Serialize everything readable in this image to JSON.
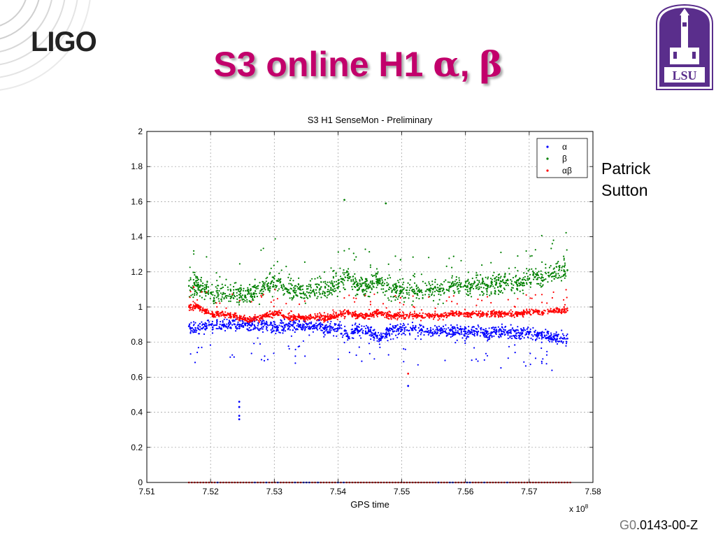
{
  "slide": {
    "logo_text": "LIGO",
    "title_main": "S3 online H1 ",
    "alpha": "α",
    "comma": ", ",
    "beta": "β",
    "author_first": "Patrick",
    "author_last": "Sutton",
    "doc_id_hidden": "G0",
    "doc_id": ".0143-00-Z",
    "title_color": "#c2006b",
    "lsu_logo_text": "LSU",
    "lsu_color": "#5a2e8c"
  },
  "chart_data": {
    "type": "scatter",
    "title": "S3 H1 SenseMon - Preliminary",
    "xlabel": "GPS time",
    "ylabel": "",
    "x_multiplier": "x 10",
    "x_multiplier_exp": "8",
    "xlim": [
      7.51,
      7.58
    ],
    "ylim": [
      0,
      2
    ],
    "xticks": [
      "7.51",
      "7.52",
      "7.53",
      "7.54",
      "7.55",
      "7.56",
      "7.57",
      "7.58"
    ],
    "yticks": [
      "0",
      "0.2",
      "0.4",
      "0.6",
      "0.8",
      "1",
      "1.2",
      "1.4",
      "1.6",
      "1.8",
      "2"
    ],
    "grid": true,
    "legend_position": "top-right",
    "series": [
      {
        "name": "α",
        "color": "#0000ff",
        "x": [
          7.5166,
          7.518,
          7.52,
          7.522,
          7.5245,
          7.526,
          7.528,
          7.5305,
          7.532,
          7.534,
          7.536,
          7.538,
          7.54,
          7.5415,
          7.543,
          7.545,
          7.5465,
          7.548,
          7.55,
          7.552,
          7.554,
          7.556,
          7.558,
          7.56,
          7.562,
          7.564,
          7.566,
          7.568,
          7.57,
          7.572,
          7.574,
          7.576
        ],
        "y": [
          0.89,
          0.88,
          0.9,
          0.9,
          0.9,
          0.9,
          0.9,
          0.88,
          0.9,
          0.89,
          0.89,
          0.88,
          0.88,
          0.84,
          0.87,
          0.86,
          0.82,
          0.87,
          0.87,
          0.88,
          0.86,
          0.87,
          0.86,
          0.86,
          0.86,
          0.85,
          0.86,
          0.85,
          0.85,
          0.84,
          0.82,
          0.82
        ]
      },
      {
        "name": "β",
        "color": "#008000",
        "x": [
          7.5166,
          7.518,
          7.52,
          7.522,
          7.5245,
          7.526,
          7.528,
          7.5305,
          7.532,
          7.534,
          7.536,
          7.538,
          7.54,
          7.5415,
          7.543,
          7.545,
          7.5465,
          7.548,
          7.55,
          7.552,
          7.554,
          7.556,
          7.558,
          7.56,
          7.562,
          7.564,
          7.566,
          7.568,
          7.57,
          7.572,
          7.574,
          7.576
        ],
        "y": [
          1.12,
          1.12,
          1.08,
          1.08,
          1.07,
          1.08,
          1.1,
          1.15,
          1.1,
          1.1,
          1.09,
          1.11,
          1.13,
          1.18,
          1.12,
          1.12,
          1.16,
          1.1,
          1.09,
          1.09,
          1.1,
          1.1,
          1.12,
          1.12,
          1.13,
          1.12,
          1.14,
          1.14,
          1.16,
          1.17,
          1.2,
          1.21
        ]
      },
      {
        "name": "αβ",
        "color": "#ff0000",
        "x": [
          7.5166,
          7.518,
          7.52,
          7.522,
          7.5245,
          7.526,
          7.528,
          7.5305,
          7.532,
          7.534,
          7.536,
          7.538,
          7.54,
          7.5415,
          7.543,
          7.545,
          7.5465,
          7.548,
          7.55,
          7.552,
          7.554,
          7.556,
          7.558,
          7.56,
          7.562,
          7.564,
          7.566,
          7.568,
          7.57,
          7.572,
          7.574,
          7.576
        ],
        "y": [
          1.0,
          1.0,
          0.96,
          0.96,
          0.94,
          0.93,
          0.94,
          0.97,
          0.94,
          0.94,
          0.94,
          0.94,
          0.95,
          0.97,
          0.95,
          0.95,
          0.97,
          0.95,
          0.95,
          0.95,
          0.95,
          0.95,
          0.96,
          0.96,
          0.96,
          0.96,
          0.96,
          0.96,
          0.97,
          0.97,
          0.98,
          0.98
        ]
      }
    ],
    "outlier_points": [
      {
        "series": "α",
        "x": 7.5245,
        "y": 0.46
      },
      {
        "series": "α",
        "x": 7.5245,
        "y": 0.43
      },
      {
        "series": "α",
        "x": 7.5245,
        "y": 0.38
      },
      {
        "series": "α",
        "x": 7.5245,
        "y": 0.36
      },
      {
        "series": "α",
        "x": 7.551,
        "y": 0.55
      },
      {
        "series": "αβ",
        "x": 7.551,
        "y": 0.62
      },
      {
        "series": "β",
        "x": 7.541,
        "y": 1.61
      },
      {
        "series": "β",
        "x": 7.5475,
        "y": 1.59
      }
    ],
    "zero_band": {
      "x_start": 7.5166,
      "x_end": 7.5766,
      "y": 0
    }
  }
}
